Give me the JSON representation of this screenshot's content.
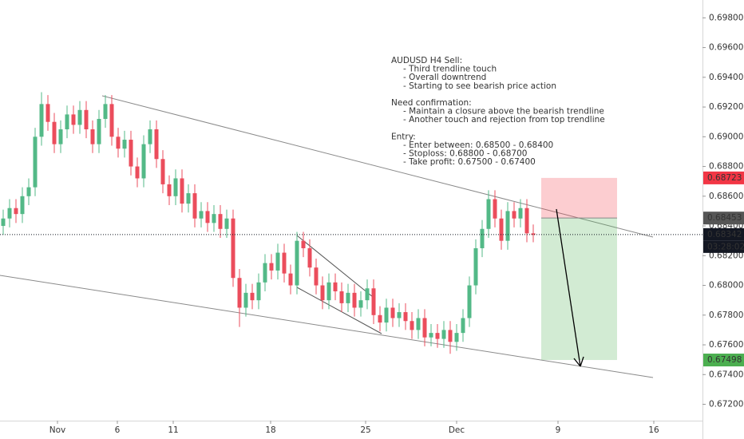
{
  "chart_data": {
    "type": "candlestick",
    "up_color": "#53b987",
    "down_color": "#eb4d5c",
    "candles": {
      "open": [
        0.684,
        0.6845,
        0.6852,
        0.6848,
        0.686,
        0.6866,
        0.69,
        0.6922,
        0.691,
        0.6895,
        0.6905,
        0.6915,
        0.6908,
        0.6918,
        0.6905,
        0.6895,
        0.6912,
        0.6922,
        0.69,
        0.6892,
        0.6898,
        0.688,
        0.6872,
        0.6895,
        0.6905,
        0.6885,
        0.6868,
        0.686,
        0.6872,
        0.6855,
        0.6862,
        0.6845,
        0.685,
        0.6842,
        0.6848,
        0.6838,
        0.6845,
        0.6805,
        0.6785,
        0.6795,
        0.679,
        0.6802,
        0.6815,
        0.681,
        0.6822,
        0.6808,
        0.68,
        0.683,
        0.6825,
        0.6812,
        0.68,
        0.679,
        0.6802,
        0.6796,
        0.6788,
        0.6795,
        0.6785,
        0.679,
        0.6798,
        0.678,
        0.6775,
        0.6785,
        0.6778,
        0.6782,
        0.6776,
        0.677,
        0.6778,
        0.6765,
        0.6768,
        0.6764,
        0.677,
        0.6762,
        0.6768,
        0.6778,
        0.68,
        0.6825,
        0.6838,
        0.6858,
        0.6845,
        0.683,
        0.685,
        0.6845,
        0.6852,
        0.6835
      ],
      "high": [
        0.6851,
        0.6858,
        0.6858,
        0.6866,
        0.6872,
        0.6906,
        0.693,
        0.6928,
        0.6916,
        0.6911,
        0.6921,
        0.6921,
        0.6924,
        0.6924,
        0.6911,
        0.6918,
        0.6928,
        0.6928,
        0.6906,
        0.6904,
        0.6904,
        0.6886,
        0.6901,
        0.6911,
        0.6911,
        0.6891,
        0.6874,
        0.6878,
        0.6878,
        0.6868,
        0.6868,
        0.6856,
        0.6856,
        0.6854,
        0.6854,
        0.6851,
        0.6851,
        0.6811,
        0.6801,
        0.6801,
        0.6808,
        0.6821,
        0.6821,
        0.6828,
        0.6828,
        0.6814,
        0.6836,
        0.6836,
        0.6831,
        0.6818,
        0.6806,
        0.6808,
        0.6808,
        0.6802,
        0.6801,
        0.6801,
        0.6796,
        0.6804,
        0.6804,
        0.6786,
        0.6791,
        0.6791,
        0.6788,
        0.6788,
        0.6782,
        0.6784,
        0.6784,
        0.6774,
        0.6774,
        0.6776,
        0.6776,
        0.6774,
        0.6784,
        0.6806,
        0.6831,
        0.6844,
        0.6864,
        0.6864,
        0.6851,
        0.6856,
        0.6856,
        0.6858,
        0.6858,
        0.6841
      ],
      "low": [
        0.6834,
        0.6839,
        0.6842,
        0.6842,
        0.6854,
        0.686,
        0.6894,
        0.6904,
        0.6889,
        0.6889,
        0.6899,
        0.6902,
        0.6902,
        0.6899,
        0.6889,
        0.6889,
        0.6906,
        0.6894,
        0.6886,
        0.6886,
        0.6874,
        0.6866,
        0.6866,
        0.6889,
        0.6879,
        0.6862,
        0.6854,
        0.6854,
        0.6849,
        0.6849,
        0.6839,
        0.6839,
        0.6836,
        0.6836,
        0.6832,
        0.6832,
        0.6799,
        0.6772,
        0.6779,
        0.6784,
        0.6784,
        0.6796,
        0.6804,
        0.6804,
        0.6802,
        0.6794,
        0.6794,
        0.6819,
        0.6806,
        0.6794,
        0.6784,
        0.6784,
        0.679,
        0.6782,
        0.6782,
        0.6779,
        0.6779,
        0.6784,
        0.6774,
        0.6769,
        0.6769,
        0.6772,
        0.6772,
        0.677,
        0.6764,
        0.6764,
        0.6759,
        0.6759,
        0.6758,
        0.6758,
        0.6754,
        0.6756,
        0.6762,
        0.6772,
        0.6794,
        0.6819,
        0.6832,
        0.6839,
        0.6824,
        0.6824,
        0.6839,
        0.6839,
        0.6829,
        0.6829
      ],
      "close": [
        0.6845,
        0.6852,
        0.6848,
        0.686,
        0.6866,
        0.69,
        0.6922,
        0.691,
        0.6895,
        0.6905,
        0.6915,
        0.6908,
        0.6918,
        0.6905,
        0.6895,
        0.6912,
        0.6922,
        0.69,
        0.6892,
        0.6898,
        0.688,
        0.6872,
        0.6895,
        0.6905,
        0.6885,
        0.6868,
        0.686,
        0.6872,
        0.6855,
        0.6862,
        0.6845,
        0.685,
        0.6842,
        0.6848,
        0.6838,
        0.6845,
        0.6805,
        0.6785,
        0.6795,
        0.679,
        0.6802,
        0.6815,
        0.681,
        0.6822,
        0.6808,
        0.68,
        0.683,
        0.6825,
        0.6812,
        0.68,
        0.679,
        0.6802,
        0.6796,
        0.6788,
        0.6795,
        0.6785,
        0.679,
        0.6798,
        0.678,
        0.6775,
        0.6785,
        0.6778,
        0.6782,
        0.6776,
        0.677,
        0.6778,
        0.6765,
        0.6768,
        0.6764,
        0.677,
        0.6762,
        0.6768,
        0.6778,
        0.68,
        0.6825,
        0.6838,
        0.6858,
        0.6845,
        0.683,
        0.685,
        0.6845,
        0.6852,
        0.6835,
        0.6834
      ]
    },
    "xlim": [
      0,
      110
    ],
    "xticks": [
      {
        "value": 9,
        "label": "Nov"
      },
      {
        "value": 18.375,
        "label": "6"
      },
      {
        "value": 27.125,
        "label": "11"
      },
      {
        "value": 42.375,
        "label": "18"
      },
      {
        "value": 57.25,
        "label": "25"
      },
      {
        "value": 71.5,
        "label": "Dec"
      },
      {
        "value": 87.375,
        "label": "9"
      },
      {
        "value": 102.375,
        "label": "16"
      }
    ],
    "ylim": [
      0.6709,
      0.6992
    ],
    "yticks": [
      {
        "value": 0.698,
        "label": "0.69800"
      },
      {
        "value": 0.696,
        "label": "0.69600"
      },
      {
        "value": 0.694,
        "label": "0.69400"
      },
      {
        "value": 0.692,
        "label": "0.69200"
      },
      {
        "value": 0.69,
        "label": "0.69000"
      },
      {
        "value": 0.688,
        "label": "0.68800"
      },
      {
        "value": 0.686,
        "label": "0.68600"
      },
      {
        "value": 0.684,
        "label": "0.68400"
      },
      {
        "value": 0.682,
        "label": "0.68200"
      },
      {
        "value": 0.68,
        "label": "0.68000"
      },
      {
        "value": 0.678,
        "label": "0.67800"
      },
      {
        "value": 0.676,
        "label": "0.67600"
      },
      {
        "value": 0.674,
        "label": "0.67400"
      },
      {
        "value": 0.672,
        "label": "0.67200"
      }
    ],
    "price_labels": [
      {
        "value": 0.68723,
        "label": "0.68723",
        "color": "#f23645"
      },
      {
        "value": 0.68453,
        "label": "0.68453",
        "color": "#555555"
      },
      {
        "value": 0.68342,
        "label": "0.68342",
        "color": "#131722"
      },
      {
        "value": 0.67498,
        "label": "0.67498",
        "color": "#4caf50"
      }
    ],
    "countdown": "03:28:02",
    "annotation": {
      "color": "#f23645",
      "blocks": [
        {
          "heading": "AUDUSD H4 Sell:",
          "items": [
            "- Third trendline touch",
            "- Overall downtrend",
            "- Starting to see bearish price action"
          ]
        },
        {
          "heading": "Need confirmation:",
          "items": [
            "- Maintain a closure above the bearish trendline",
            "- Another touch and rejection from top trendline"
          ]
        },
        {
          "heading": "Entry:",
          "items": [
            "- Enter between: 0.68500 - 0.68400",
            "- Stoploss: 0.68800 - 0.68700",
            "- Take profit: 0.67500 - 0.67400"
          ]
        }
      ]
    }
  }
}
